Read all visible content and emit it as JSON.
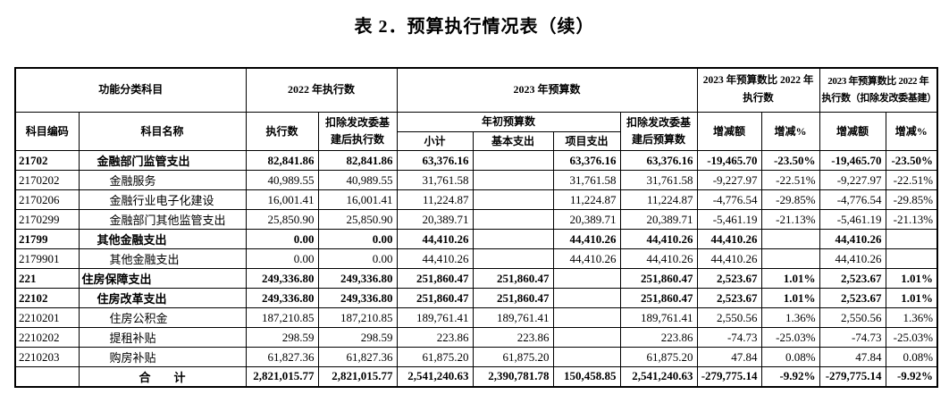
{
  "title": "表 2．预算执行情况表（续）",
  "colors": {
    "text": "#000000",
    "border": "#000000",
    "background": "#ffffff"
  },
  "table": {
    "headers": {
      "group_function": "功能分类科目",
      "group_2022": "2022 年执行数",
      "group_2023": "2023 年预算数",
      "group_cmp1": "2023 年预算数比 2022 年\n执行数",
      "group_cmp2": "2023 年预算数比 2022 年\n执行数（扣除发改委基建）",
      "code": "科目编码",
      "name": "科目名称",
      "exec": "执行数",
      "exec_ex": "扣除发改委基\n建后执行数",
      "initial_budget": "年初预算数",
      "subtotal": "小计",
      "basic": "基本支出",
      "project": "项目支出",
      "budget_ex": "扣除发改委基\n建后预算数",
      "diff1": "增减额",
      "pct1": "增减%",
      "diff2": "增减额",
      "pct2": "增减%"
    },
    "rows": [
      {
        "code": "21702",
        "name": "金融部门监管支出",
        "indent": 1,
        "bold": true,
        "center": false,
        "values": [
          "82,841.86",
          "82,841.86",
          "63,376.16",
          "",
          "63,376.16",
          "63,376.16",
          "-19,465.70",
          "-23.50%",
          "-19,465.70",
          "-23.50%"
        ]
      },
      {
        "code": "2170202",
        "name": "金融服务",
        "indent": 2,
        "bold": false,
        "center": false,
        "values": [
          "40,989.55",
          "40,989.55",
          "31,761.58",
          "",
          "31,761.58",
          "31,761.58",
          "-9,227.97",
          "-22.51%",
          "-9,227.97",
          "-22.51%"
        ]
      },
      {
        "code": "2170206",
        "name": "金融行业电子化建设",
        "indent": 2,
        "bold": false,
        "center": false,
        "values": [
          "16,001.41",
          "16,001.41",
          "11,224.87",
          "",
          "11,224.87",
          "11,224.87",
          "-4,776.54",
          "-29.85%",
          "-4,776.54",
          "-29.85%"
        ]
      },
      {
        "code": "2170299",
        "name": "金融部门其他监管支出",
        "indent": 2,
        "bold": false,
        "center": false,
        "values": [
          "25,850.90",
          "25,850.90",
          "20,389.71",
          "",
          "20,389.71",
          "20,389.71",
          "-5,461.19",
          "-21.13%",
          "-5,461.19",
          "-21.13%"
        ]
      },
      {
        "code": "21799",
        "name": "其他金融支出",
        "indent": 1,
        "bold": true,
        "center": false,
        "values": [
          "0.00",
          "0.00",
          "44,410.26",
          "",
          "44,410.26",
          "44,410.26",
          "44,410.26",
          "",
          "44,410.26",
          ""
        ]
      },
      {
        "code": "2179901",
        "name": "其他金融支出",
        "indent": 2,
        "bold": false,
        "center": false,
        "values": [
          "0.00",
          "0.00",
          "44,410.26",
          "",
          "44,410.26",
          "44,410.26",
          "44,410.26",
          "",
          "44,410.26",
          ""
        ]
      },
      {
        "code": "221",
        "name": "住房保障支出",
        "indent": 0,
        "bold": true,
        "center": false,
        "values": [
          "249,336.80",
          "249,336.80",
          "251,860.47",
          "251,860.47",
          "",
          "251,860.47",
          "2,523.67",
          "1.01%",
          "2,523.67",
          "1.01%"
        ]
      },
      {
        "code": "22102",
        "name": "住房改革支出",
        "indent": 1,
        "bold": true,
        "center": false,
        "values": [
          "249,336.80",
          "249,336.80",
          "251,860.47",
          "251,860.47",
          "",
          "251,860.47",
          "2,523.67",
          "1.01%",
          "2,523.67",
          "1.01%"
        ]
      },
      {
        "code": "2210201",
        "name": "住房公积金",
        "indent": 2,
        "bold": false,
        "center": false,
        "values": [
          "187,210.85",
          "187,210.85",
          "189,761.41",
          "189,761.41",
          "",
          "189,761.41",
          "2,550.56",
          "1.36%",
          "2,550.56",
          "1.36%"
        ]
      },
      {
        "code": "2210202",
        "name": "提租补贴",
        "indent": 2,
        "bold": false,
        "center": false,
        "values": [
          "298.59",
          "298.59",
          "223.86",
          "223.86",
          "",
          "223.86",
          "-74.73",
          "-25.03%",
          "-74.73",
          "-25.03%"
        ]
      },
      {
        "code": "2210203",
        "name": "购房补贴",
        "indent": 2,
        "bold": false,
        "center": false,
        "values": [
          "61,827.36",
          "61,827.36",
          "61,875.20",
          "61,875.20",
          "",
          "61,875.20",
          "47.84",
          "0.08%",
          "47.84",
          "0.08%"
        ]
      },
      {
        "code": "",
        "name": "合　　计",
        "indent": 0,
        "bold": true,
        "center": true,
        "values": [
          "2,821,015.77",
          "2,821,015.77",
          "2,541,240.63",
          "2,390,781.78",
          "150,458.85",
          "2,541,240.63",
          "-279,775.14",
          "-9.92%",
          "-279,775.14",
          "-9.92%"
        ]
      }
    ]
  }
}
